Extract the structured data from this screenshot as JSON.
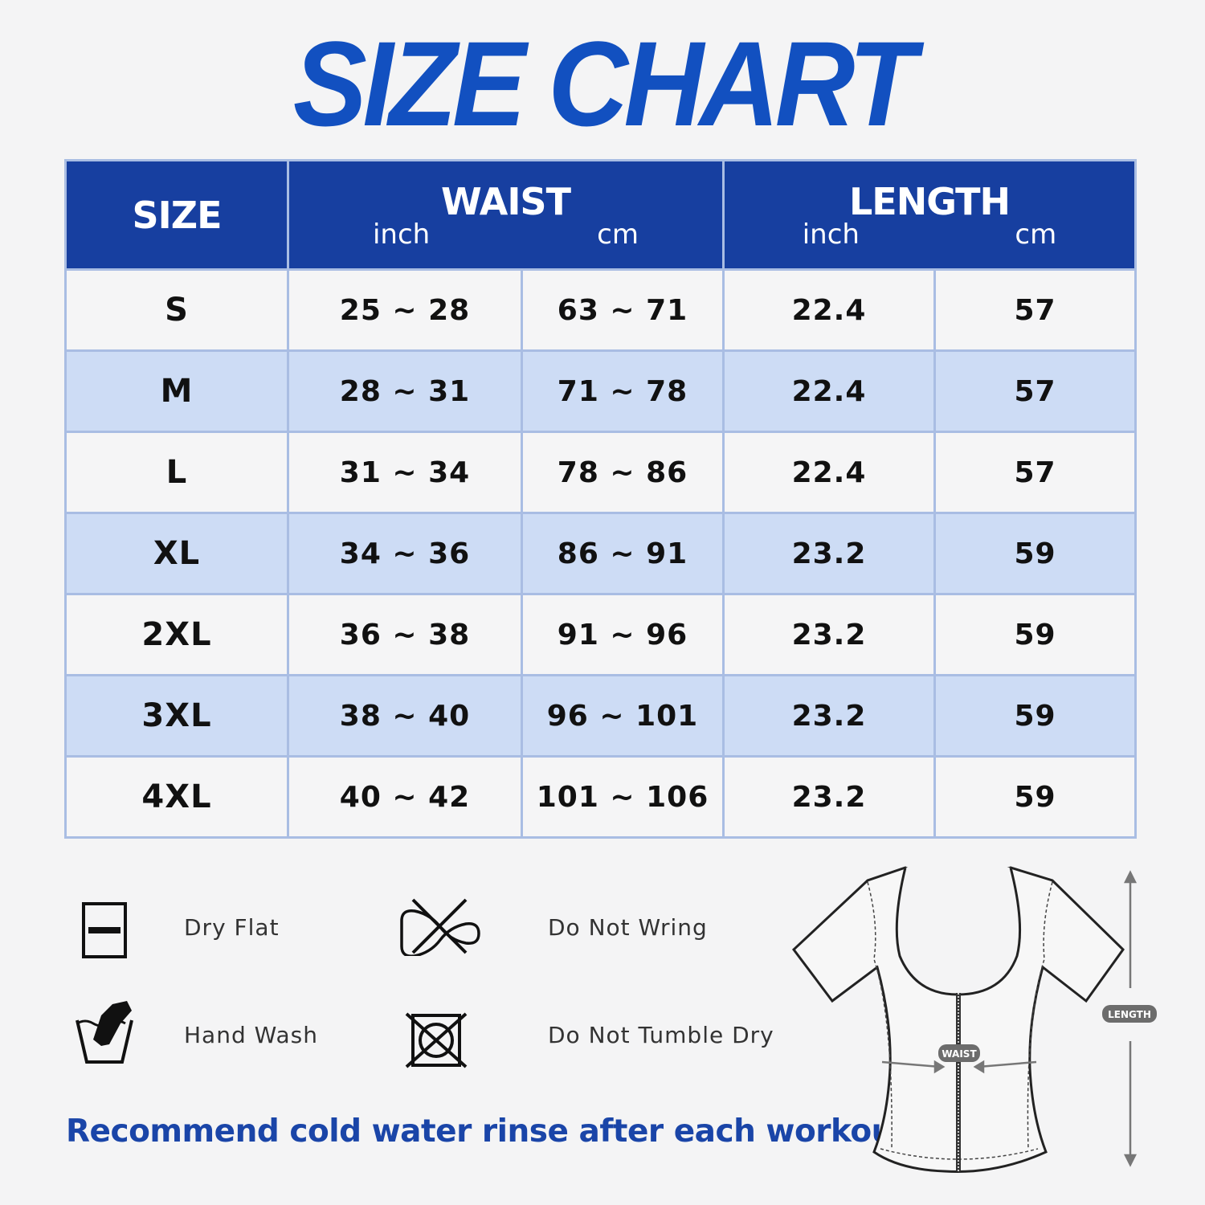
{
  "title": "SIZE CHART",
  "table": {
    "headers": {
      "size": "SIZE",
      "waist": "WAIST",
      "length": "LENGTH",
      "unit_inch": "inch",
      "unit_cm": "cm"
    },
    "rows": [
      {
        "size": "S",
        "waist_in": "25 ~ 28",
        "waist_cm": "63 ~ 71",
        "length_in": "22.4",
        "length_cm": "57"
      },
      {
        "size": "M",
        "waist_in": "28 ~ 31",
        "waist_cm": "71 ~ 78",
        "length_in": "22.4",
        "length_cm": "57"
      },
      {
        "size": "L",
        "waist_in": "31 ~ 34",
        "waist_cm": "78 ~ 86",
        "length_in": "22.4",
        "length_cm": "57"
      },
      {
        "size": "XL",
        "waist_in": "34 ~ 36",
        "waist_cm": "86 ~ 91",
        "length_in": "23.2",
        "length_cm": "59"
      },
      {
        "size": "2XL",
        "waist_in": "36 ~ 38",
        "waist_cm": "91 ~ 96",
        "length_in": "23.2",
        "length_cm": "59"
      },
      {
        "size": "3XL",
        "waist_in": "38 ~ 40",
        "waist_cm": "96 ~ 101",
        "length_in": "23.2",
        "length_cm": "59"
      },
      {
        "size": "4XL",
        "waist_in": "40 ~ 42",
        "waist_cm": "101 ~ 106",
        "length_in": "23.2",
        "length_cm": "59"
      }
    ]
  },
  "care": {
    "dry_flat": "Dry Flat",
    "hand_wash": "Hand Wash",
    "do_not_wring": "Do Not Wring",
    "do_not_tumble_dry": "Do Not Tumble Dry"
  },
  "note": "Recommend cold water rinse after each workout.",
  "diagram": {
    "waist_label": "WAIST",
    "length_label": "LENGTH"
  },
  "colors": {
    "header_blue": "#173fa0",
    "title_blue": "#1250c0",
    "row_alt": "#cddcf5",
    "note_blue": "#1a45a8"
  }
}
